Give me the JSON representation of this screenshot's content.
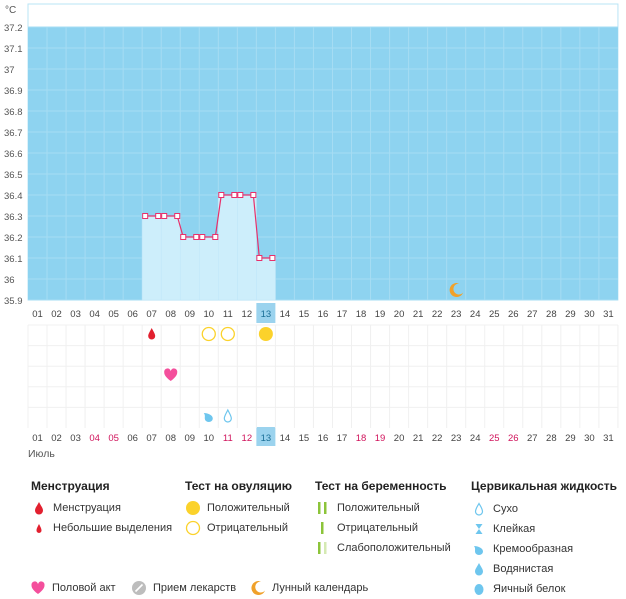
{
  "chart_data": {
    "type": "line",
    "title": "",
    "unit": "°C",
    "month": "Июль",
    "ylim": [
      35.9,
      37.2
    ],
    "yticks": [
      "35.9",
      "36",
      "36.1",
      "36.2",
      "36.3",
      "36.4",
      "36.5",
      "36.6",
      "36.7",
      "36.8",
      "36.9",
      "37",
      "37.1",
      "37.2"
    ],
    "days": [
      "01",
      "02",
      "03",
      "04",
      "05",
      "06",
      "07",
      "08",
      "09",
      "10",
      "11",
      "12",
      "13",
      "14",
      "15",
      "16",
      "17",
      "18",
      "19",
      "20",
      "21",
      "22",
      "23",
      "24",
      "25",
      "26",
      "27",
      "28",
      "29",
      "30",
      "31"
    ],
    "highlight_day": "13",
    "weekend_days": [
      "04",
      "05",
      "11",
      "12",
      "18",
      "19",
      "25",
      "26"
    ],
    "series": [
      {
        "x": [
          "07",
          "08",
          "09",
          "10",
          "11",
          "12",
          "13"
        ],
        "values": [
          36.3,
          36.3,
          36.2,
          36.2,
          36.4,
          36.4,
          36.1
        ]
      }
    ],
    "events": {
      "menstruation_light": [
        "07"
      ],
      "ovulation_negative": [
        "10",
        "11"
      ],
      "ovulation_positive": [
        "13"
      ],
      "intercourse": [
        "08"
      ],
      "cervical_creamy": [
        "10"
      ],
      "cervical_dry": [
        "11"
      ],
      "moon": [
        "23"
      ]
    },
    "colors": {
      "sky": "#8ed3f0",
      "bars": "#cdeefb",
      "line": "#e8306b",
      "red": "#e2202f",
      "yellow": "#fbd22b",
      "pink": "#f44f9c",
      "blue": "#6ec6ee",
      "orange": "#f0a12a",
      "green": "#8cc43a",
      "highlight": "#9bd3ee",
      "weekend": "#d0135b"
    }
  },
  "legend": {
    "menstruation": {
      "title": "Менструация",
      "items": [
        "Менструация",
        "Небольшие выделения"
      ]
    },
    "ovulation": {
      "title": "Тест на овуляцию",
      "items": [
        "Положительный",
        "Отрицательный"
      ]
    },
    "pregnancy": {
      "title": "Тест на беременность",
      "items": [
        "Положительный",
        "Отрицательный",
        "Слабоположительный"
      ]
    },
    "cervical": {
      "title": "Цервикальная жидкость",
      "items": [
        "Сухо",
        "Клейкая",
        "Кремообразная",
        "Водянистая",
        "Яичный белок"
      ]
    },
    "bottom": [
      "Половой акт",
      "Прием лекарств",
      "Лунный календарь"
    ],
    "icons": [
      "drop-icon",
      "small-drop-icon",
      "circle-full-icon",
      "circle-empty-icon",
      "double-bar-icon",
      "single-bar-icon",
      "faint-bar-icon",
      "empty-drop-icon",
      "hourglass-icon",
      "creamy-drop-icon",
      "full-drop-icon",
      "oval-icon",
      "heart-icon",
      "pill-icon",
      "moon-icon"
    ]
  }
}
